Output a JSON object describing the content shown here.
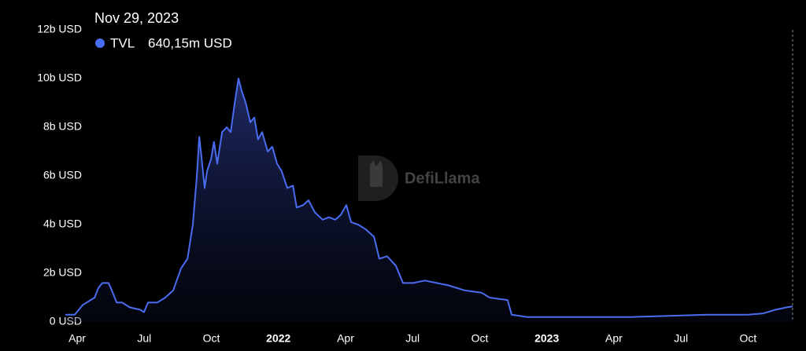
{
  "chart_data": {
    "type": "area",
    "tooltip": {
      "date": "Nov 29, 2023",
      "value_label": "640,15m USD"
    },
    "watermark": "DefiLlama",
    "x": [
      2021.206,
      2021.241,
      2021.271,
      2021.3,
      2021.315,
      2021.329,
      2021.344,
      2021.367,
      2021.379,
      2021.397,
      2021.417,
      2021.446,
      2021.485,
      2021.499,
      2021.514,
      2021.549,
      2021.578,
      2021.608,
      2021.637,
      2021.661,
      2021.681,
      2021.696,
      2021.705,
      2021.713,
      2021.725,
      2021.734,
      2021.749,
      2021.76,
      2021.772,
      2021.79,
      2021.807,
      2021.822,
      2021.837,
      2021.851,
      2021.863,
      2021.878,
      2021.895,
      2021.91,
      2021.924,
      2021.939,
      2021.96,
      2021.977,
      2021.995,
      2022.012,
      2022.033,
      2022.054,
      2022.068,
      2022.092,
      2022.112,
      2022.136,
      2022.165,
      2022.188,
      2022.212,
      2022.232,
      2022.253,
      2022.271,
      2022.297,
      2022.326,
      2022.356,
      2022.376,
      2022.405,
      2022.438,
      2022.464,
      2022.502,
      2022.546,
      2022.59,
      2022.634,
      2022.693,
      2022.757,
      2022.787,
      2022.854,
      2022.869,
      2022.927,
      2023.015,
      2023.162,
      2023.309,
      2023.455,
      2023.602,
      2023.749,
      2023.807,
      2023.851,
      2023.895,
      2023.916
    ],
    "series": [
      {
        "name": "TVL",
        "color": "#4a6cf0",
        "values": [
          0.3,
          0.3,
          0.7,
          0.9,
          1.0,
          1.4,
          1.6,
          1.6,
          1.3,
          0.8,
          0.8,
          0.6,
          0.5,
          0.4,
          0.8,
          0.8,
          1.0,
          1.3,
          2.2,
          2.6,
          4.0,
          6.0,
          7.6,
          6.8,
          5.5,
          6.2,
          6.7,
          7.4,
          6.5,
          7.8,
          8.0,
          7.8,
          9.0,
          10.0,
          9.5,
          9.0,
          8.2,
          8.4,
          7.5,
          7.8,
          7.0,
          7.2,
          6.5,
          6.2,
          5.5,
          5.6,
          4.7,
          4.8,
          5.0,
          4.5,
          4.2,
          4.3,
          4.2,
          4.4,
          4.8,
          4.1,
          4.0,
          3.8,
          3.5,
          2.6,
          2.7,
          2.3,
          1.6,
          1.6,
          1.7,
          1.6,
          1.5,
          1.3,
          1.2,
          1.0,
          0.9,
          0.3,
          0.2,
          0.2,
          0.2,
          0.2,
          0.25,
          0.3,
          0.3,
          0.35,
          0.5,
          0.6,
          0.64015
        ]
      }
    ],
    "xlim": [
      2021.2,
      2023.916
    ],
    "xticks": [
      {
        "value": 2021.25,
        "label": "Apr"
      },
      {
        "value": 2021.5,
        "label": "Jul"
      },
      {
        "value": 2021.75,
        "label": "Oct"
      },
      2022,
      {
        "value": 2022.25,
        "label": "Apr"
      },
      {
        "value": 2022.5,
        "label": "Jul"
      },
      {
        "value": 2022.75,
        "label": "Oct"
      },
      2023,
      {
        "value": 2023.25,
        "label": "Apr"
      },
      {
        "value": 2023.5,
        "label": "Jul"
      },
      {
        "value": 2023.75,
        "label": "Oct"
      }
    ],
    "ylim": [
      0,
      12
    ],
    "yticks": [
      {
        "value": 0,
        "label": "0 USD"
      },
      {
        "value": 2,
        "label": "2b USD"
      },
      {
        "value": 4,
        "label": "4b USD"
      },
      {
        "value": 6,
        "label": "6b USD"
      },
      {
        "value": 8,
        "label": "8b USD"
      },
      {
        "value": 10,
        "label": "10b USD"
      },
      {
        "value": 12,
        "label": "12b USD"
      }
    ],
    "grid": false
  }
}
